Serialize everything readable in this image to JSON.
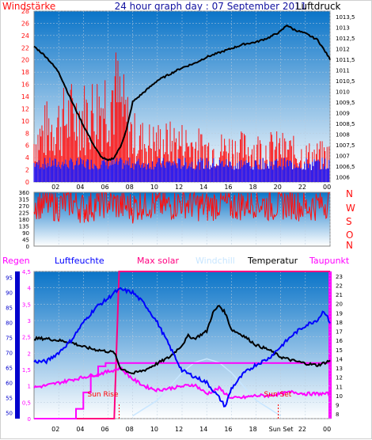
{
  "header": {
    "left_label": "Windstärke",
    "title": "24 hour graph day : 07 September 2011",
    "right_label": "Luftdruck"
  },
  "colors": {
    "wind": "#ff1010",
    "gust_low": "#1010ff",
    "pressure": "#000000",
    "direction": "#ff1010",
    "rain": "#ff00ff",
    "humidity": "#0000ff",
    "solar": "#ff0080",
    "windchill": "#c8e6ff",
    "temperature": "#000000",
    "dewpoint": "#ff00ff",
    "frame": "#ff0000",
    "bg_top": "#0a74c8",
    "bg_bottom": "#ffffff"
  },
  "x_ticks": [
    "02",
    "04",
    "06",
    "08",
    "10",
    "12",
    "14",
    "16",
    "18",
    "20",
    "22",
    "00"
  ],
  "x_ticks_bottom": [
    "02",
    "04",
    "06",
    "08",
    "10",
    "12",
    "14",
    "16",
    "18",
    "Sun Set",
    "22",
    "00"
  ],
  "chart_data": [
    {
      "type": "line",
      "name": "wind-pressure",
      "left_axis": {
        "label": "Windstärke",
        "range": [
          0,
          28
        ],
        "ticks": [
          "0",
          "2",
          "4",
          "6",
          "8",
          "10",
          "12",
          "14",
          "16",
          "18",
          "20",
          "22",
          "24",
          "26",
          "28"
        ]
      },
      "right_axis": {
        "label": "Luftdruck",
        "range": [
          1005.75,
          1013.75
        ],
        "ticks": [
          "1006",
          "1006,5",
          "1007",
          "1007,5",
          "1008",
          "1008,5",
          "1009",
          "1009,5",
          "1010",
          "1010,5",
          "1011",
          "1011,5",
          "1012",
          "1012,5",
          "1013",
          "1013,5"
        ]
      },
      "series": [
        {
          "name": "Luftdruck",
          "axis": "right",
          "x": [
            0,
            1,
            2,
            3,
            4,
            5,
            5.5,
            6,
            6.5,
            7,
            7.5,
            8,
            9,
            10,
            11,
            12,
            13,
            14,
            15,
            16,
            17,
            18,
            19,
            20,
            20.5,
            21,
            22,
            23,
            24
          ],
          "y": [
            1012.1,
            1011.6,
            1010.9,
            1009.6,
            1008.4,
            1007.3,
            1006.9,
            1006.75,
            1006.9,
            1007.4,
            1008.2,
            1009.5,
            1010.0,
            1010.5,
            1010.8,
            1011.1,
            1011.3,
            1011.6,
            1011.8,
            1012.0,
            1012.2,
            1012.3,
            1012.5,
            1012.8,
            1013.1,
            1012.9,
            1012.7,
            1012.4,
            1011.5
          ]
        },
        {
          "name": "Windstärke",
          "axis": "left",
          "x": [
            0,
            1,
            2,
            3,
            4,
            5,
            6,
            6.5,
            7,
            8,
            9,
            10,
            12,
            14,
            16,
            18,
            20,
            22,
            24
          ],
          "y": [
            6,
            8,
            9,
            10,
            10,
            11,
            13,
            14,
            12,
            7,
            6,
            6,
            6,
            5,
            5,
            5,
            5,
            4,
            4
          ]
        }
      ]
    },
    {
      "type": "scatter",
      "name": "wind-direction",
      "left_axis": {
        "range": [
          0,
          360
        ],
        "ticks": [
          "0",
          "45",
          "90",
          "135",
          "180",
          "225",
          "270",
          "315",
          "360"
        ]
      },
      "right_axis": {
        "ticks": [
          "N",
          "W",
          "S",
          "O",
          "N"
        ]
      },
      "x": [
        0,
        1,
        2,
        3,
        4,
        5,
        6,
        7,
        8,
        9,
        10,
        11,
        12,
        13,
        14,
        15,
        16,
        17,
        18,
        19,
        20,
        21,
        22,
        23,
        24
      ],
      "y": [
        290,
        280,
        270,
        300,
        250,
        280,
        300,
        270,
        260,
        290,
        280,
        270,
        300,
        280,
        260,
        290,
        270,
        280,
        300,
        270,
        280,
        290,
        260,
        280,
        300
      ]
    },
    {
      "type": "line",
      "name": "humidity-temperature",
      "legend": [
        "Regen",
        "Luftfeuchte",
        "Max solar",
        "Windchill",
        "Temperatur",
        "Taupunkt"
      ],
      "axis_rain": {
        "range": [
          0,
          4.5
        ],
        "ticks": [
          "0",
          "0,5",
          "1",
          "1,5",
          "2",
          "2,5",
          "3",
          "3,5",
          "4",
          "4,5"
        ]
      },
      "axis_humidity": {
        "range": [
          48,
          97
        ],
        "ticks": [
          "50",
          "55",
          "60",
          "65",
          "70",
          "75",
          "80",
          "85",
          "90",
          "95"
        ]
      },
      "axis_temp": {
        "range": [
          7.5,
          23.5
        ],
        "ticks": [
          "8",
          "9",
          "10",
          "11",
          "12",
          "13",
          "14",
          "15",
          "16",
          "17",
          "18",
          "19",
          "20",
          "21",
          "22",
          "23"
        ]
      },
      "markers": {
        "sun_rise": "Sun Rise",
        "sun_set": "Sun Set",
        "sun_rise_x": 6.9,
        "sun_set_x": 19.8
      },
      "series": [
        {
          "name": "Temperatur",
          "x": [
            0,
            1,
            2,
            3,
            4,
            5,
            6,
            6.5,
            7,
            8,
            9,
            10,
            11,
            12,
            12.5,
            13,
            14,
            14.5,
            15,
            15.5,
            16,
            17,
            18,
            19,
            20,
            21,
            22,
            23,
            24
          ],
          "y": [
            16.2,
            16.2,
            16.0,
            15.8,
            15.3,
            15.0,
            14.8,
            14.7,
            13.0,
            12.4,
            12.8,
            13.5,
            14.2,
            15.5,
            16.5,
            16.2,
            17.0,
            19.0,
            19.8,
            19.0,
            17.2,
            16.5,
            15.5,
            15.0,
            14.2,
            13.8,
            13.5,
            13.3,
            13.8
          ]
        },
        {
          "name": "Luftfeuchte",
          "x": [
            0,
            1,
            2,
            3,
            4,
            5,
            6,
            6.5,
            7,
            8,
            9,
            10,
            11,
            12,
            13,
            14,
            15,
            15.5,
            16,
            17,
            18,
            19,
            20,
            21,
            22,
            23,
            23.5,
            24
          ],
          "y": [
            67,
            67,
            70,
            74,
            80,
            85,
            88,
            90,
            91,
            90,
            86,
            80,
            72,
            64,
            62,
            60,
            55,
            52,
            58,
            63,
            66,
            68,
            72,
            76,
            79,
            81,
            84,
            80
          ]
        },
        {
          "name": "Taupunkt",
          "x": [
            0,
            1,
            2,
            3,
            4,
            5,
            6,
            7,
            8,
            9,
            10,
            11,
            12,
            13,
            14,
            15,
            16,
            17,
            18,
            19,
            20,
            21,
            22,
            23,
            24
          ],
          "y": [
            10.9,
            11.1,
            11.4,
            11.7,
            12.0,
            12.3,
            12.6,
            13.0,
            11.8,
            11.0,
            10.6,
            10.8,
            11.0,
            11.2,
            10.2,
            10.8,
            9.7,
            9.8,
            10.0,
            10.0,
            10.2,
            10.4,
            10.2,
            10.2,
            10.2
          ]
        },
        {
          "name": "Max solar",
          "x": [
            0,
            6.5,
            6.9,
            7.5,
            24
          ],
          "y": [
            0,
            0,
            4.5,
            4.5,
            4.5
          ]
        },
        {
          "name": "Regen",
          "x": [
            0,
            3.4,
            3.4,
            4.0,
            4.0,
            4.6,
            4.6,
            5.2,
            5.2,
            5.8,
            5.8,
            6.4,
            6.4,
            24
          ],
          "y": [
            0,
            0,
            0.3,
            0.3,
            0.8,
            0.8,
            1.3,
            1.3,
            1.6,
            1.6,
            1.7,
            1.7,
            1.7,
            1.7
          ]
        },
        {
          "name": "Windchill",
          "x": [
            8,
            10,
            12,
            13,
            14,
            15,
            16,
            18,
            20
          ],
          "y": [
            7.8,
            9.5,
            12.5,
            13.6,
            14,
            13.6,
            12.5,
            9.5,
            7.8
          ]
        }
      ]
    }
  ]
}
